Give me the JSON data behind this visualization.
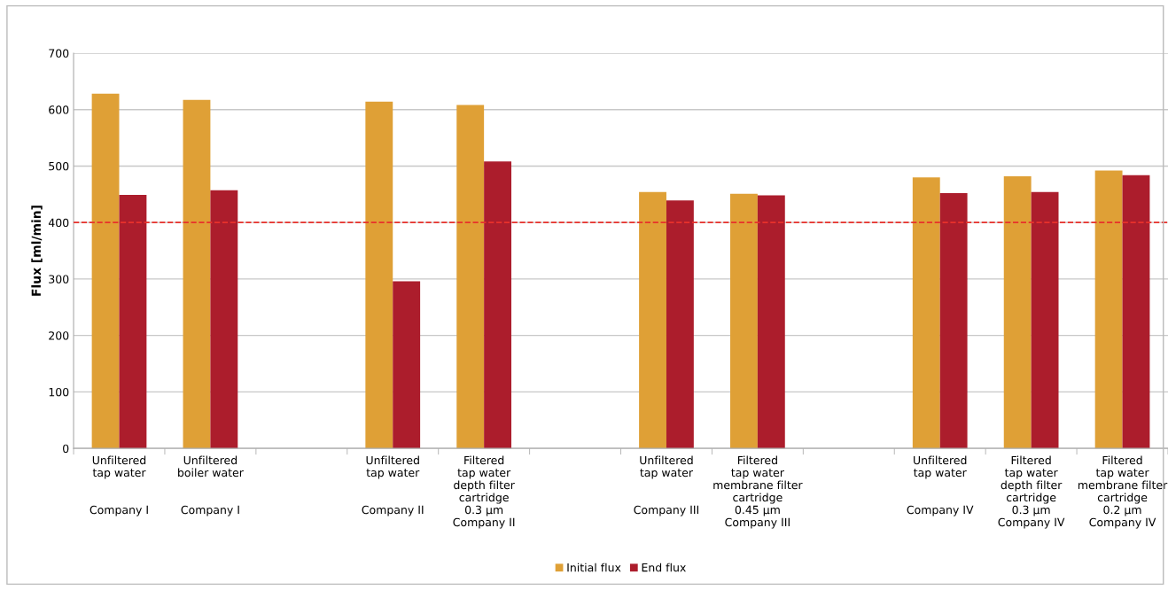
{
  "chart_data": {
    "type": "bar",
    "ylabel": "Flux [ml/min]",
    "categories": [
      "Unfiltered\ntap water\n\n\nCompany I",
      "Unfiltered\nboiler water\n\n\nCompany I",
      null,
      "Unfiltered\ntap water\n\n\nCompany II",
      "Filtered\ntap water\ndepth filter\ncartridge\n0.3 µm\nCompany II",
      null,
      "Unfiltered\ntap water\n\n\nCompany III",
      "Filtered\ntap water\nmembrane filter\ncartridge\n0.45 µm\nCompany III",
      null,
      "Unfiltered\ntap water\n\n\nCompany IV",
      "Filtered\ntap water\ndepth filter\ncartridge\n0.3 µm\nCompany IV",
      "Filtered\ntap water\nmembrane filter\ncartridge\n0.2 µm\nCompany IV"
    ],
    "series": [
      {
        "name": "Initial flux",
        "color": "#dfa036",
        "values": [
          628,
          617,
          null,
          614,
          608,
          null,
          454,
          451,
          null,
          480,
          482,
          492
        ]
      },
      {
        "name": "End flux",
        "color": "#ac1d2c",
        "values": [
          449,
          457,
          null,
          296,
          508,
          null,
          439,
          448,
          null,
          452,
          454,
          484
        ]
      }
    ],
    "ylim": [
      0,
      700
    ],
    "yticks": [
      0,
      100,
      200,
      300,
      400,
      500,
      600,
      700
    ],
    "grid": "y",
    "legend": "bottom",
    "ref_lines": [
      {
        "axis": "y",
        "value": 400,
        "color": "#e8312b",
        "line_style": "dashed"
      }
    ]
  }
}
